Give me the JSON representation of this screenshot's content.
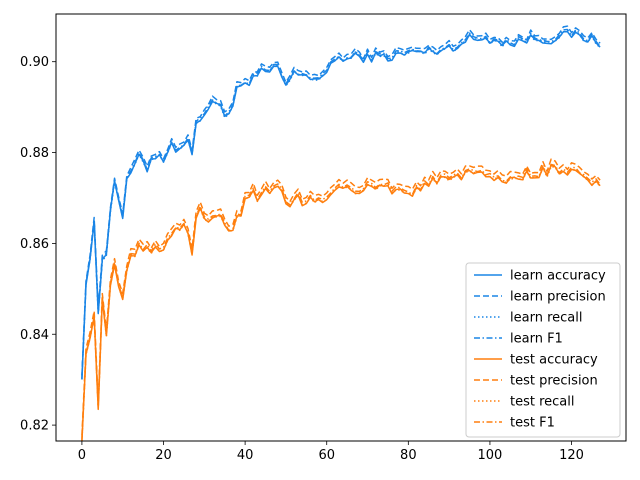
{
  "chart_data": {
    "type": "line",
    "xlim": [
      -6.35,
      133.35
    ],
    "ylim": [
      0.8165,
      0.9105
    ],
    "xticks": [
      0,
      20,
      40,
      60,
      80,
      100,
      120
    ],
    "yticks": [
      0.82,
      0.84,
      0.86,
      0.88,
      0.9
    ],
    "ytick_labels": [
      "0.82",
      "0.84",
      "0.86",
      "0.88",
      "0.90"
    ],
    "grid": false,
    "legend_position": "lower-right",
    "colors": {
      "learn": "#1f77b4",
      "learn_bright": "#1a85e6",
      "test": "#ff7f0e"
    },
    "x_count": 128,
    "series": [
      {
        "name": "learn accuracy",
        "group": "learn",
        "style": "solid",
        "anchors": [
          [
            0,
            0.833
          ],
          [
            1,
            0.852
          ],
          [
            2,
            0.857
          ],
          [
            3,
            0.862
          ],
          [
            4,
            0.845
          ],
          [
            5,
            0.858
          ],
          [
            6,
            0.86
          ],
          [
            7,
            0.866
          ],
          [
            8,
            0.875
          ],
          [
            9,
            0.87
          ],
          [
            10,
            0.867
          ],
          [
            12,
            0.876
          ],
          [
            14,
            0.878
          ],
          [
            16,
            0.877
          ],
          [
            18,
            0.88
          ],
          [
            20,
            0.879
          ],
          [
            22,
            0.881
          ],
          [
            24,
            0.882
          ],
          [
            26,
            0.883
          ],
          [
            27,
            0.878
          ],
          [
            28,
            0.887
          ],
          [
            30,
            0.889
          ],
          [
            32,
            0.89
          ],
          [
            34,
            0.891
          ],
          [
            36,
            0.888
          ],
          [
            38,
            0.893
          ],
          [
            40,
            0.894
          ],
          [
            42,
            0.896
          ],
          [
            44,
            0.897
          ],
          [
            46,
            0.898
          ],
          [
            48,
            0.899
          ],
          [
            50,
            0.894
          ],
          [
            52,
            0.898
          ],
          [
            55,
            0.897
          ],
          [
            58,
            0.895
          ],
          [
            60,
            0.898
          ],
          [
            62,
            0.901
          ],
          [
            64,
            0.9
          ],
          [
            66,
            0.901
          ],
          [
            70,
            0.901
          ],
          [
            75,
            0.901
          ],
          [
            80,
            0.902
          ],
          [
            85,
            0.902
          ],
          [
            90,
            0.903
          ],
          [
            95,
            0.905
          ],
          [
            100,
            0.905
          ],
          [
            105,
            0.904
          ],
          [
            110,
            0.905
          ],
          [
            115,
            0.905
          ],
          [
            120,
            0.906
          ],
          [
            124,
            0.905
          ],
          [
            127,
            0.904
          ]
        ]
      },
      {
        "name": "learn precision",
        "group": "learn",
        "style": "dashed",
        "offset": 0.0009
      },
      {
        "name": "learn recall",
        "group": "learn",
        "style": "dotted",
        "offset": 0.0
      },
      {
        "name": "learn F1",
        "group": "learn",
        "style": "dashdot",
        "offset": 0.0003
      },
      {
        "name": "test accuracy",
        "group": "test",
        "style": "solid",
        "anchors": [
          [
            0,
            0.819
          ],
          [
            1,
            0.838
          ],
          [
            2,
            0.84
          ],
          [
            3,
            0.843
          ],
          [
            4,
            0.823
          ],
          [
            5,
            0.848
          ],
          [
            6,
            0.839
          ],
          [
            7,
            0.851
          ],
          [
            8,
            0.854
          ],
          [
            9,
            0.853
          ],
          [
            10,
            0.848
          ],
          [
            12,
            0.857
          ],
          [
            14,
            0.858
          ],
          [
            16,
            0.86
          ],
          [
            18,
            0.859
          ],
          [
            20,
            0.86
          ],
          [
            22,
            0.861
          ],
          [
            24,
            0.862
          ],
          [
            26,
            0.863
          ],
          [
            27,
            0.859
          ],
          [
            28,
            0.866
          ],
          [
            30,
            0.866
          ],
          [
            32,
            0.864
          ],
          [
            34,
            0.866
          ],
          [
            36,
            0.861
          ],
          [
            38,
            0.866
          ],
          [
            40,
            0.869
          ],
          [
            42,
            0.87
          ],
          [
            44,
            0.871
          ],
          [
            46,
            0.872
          ],
          [
            48,
            0.873
          ],
          [
            50,
            0.868
          ],
          [
            52,
            0.87
          ],
          [
            55,
            0.869
          ],
          [
            58,
            0.87
          ],
          [
            60,
            0.87
          ],
          [
            62,
            0.871
          ],
          [
            64,
            0.873
          ],
          [
            66,
            0.872
          ],
          [
            70,
            0.872
          ],
          [
            75,
            0.872
          ],
          [
            80,
            0.871
          ],
          [
            85,
            0.873
          ],
          [
            90,
            0.875
          ],
          [
            95,
            0.875
          ],
          [
            100,
            0.875
          ],
          [
            105,
            0.874
          ],
          [
            110,
            0.875
          ],
          [
            115,
            0.876
          ],
          [
            120,
            0.876
          ],
          [
            124,
            0.874
          ],
          [
            127,
            0.873
          ]
        ]
      },
      {
        "name": "test precision",
        "group": "test",
        "style": "dashed",
        "offset": 0.0013
      },
      {
        "name": "test recall",
        "group": "test",
        "style": "dotted",
        "offset": 0.0
      },
      {
        "name": "test F1",
        "group": "test",
        "style": "dashdot",
        "offset": 0.0004
      }
    ]
  }
}
